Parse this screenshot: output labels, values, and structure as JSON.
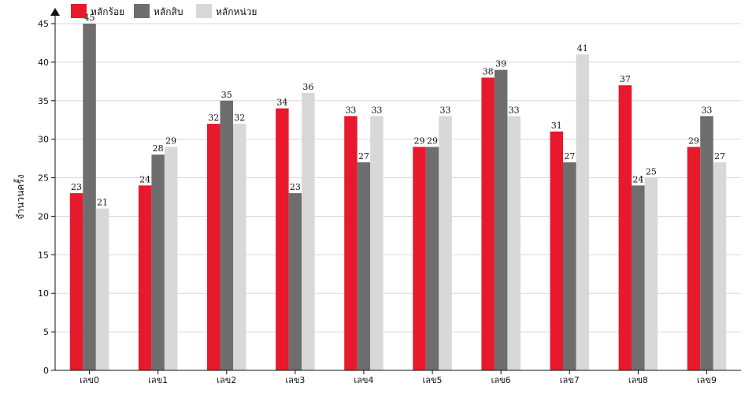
{
  "chart_data": {
    "type": "bar",
    "title": "",
    "xlabel": "",
    "ylabel": "จำนวนครั้ง",
    "ylim": [
      0,
      45
    ],
    "yticks": [
      0,
      5,
      10,
      15,
      20,
      25,
      30,
      35,
      40,
      45
    ],
    "grid": true,
    "legend_position": "top-left",
    "categories": [
      "เลข0",
      "เลข1",
      "เลข2",
      "เลข3",
      "เลข4",
      "เลข5",
      "เลข6",
      "เลข7",
      "เลข8",
      "เลข9"
    ],
    "series": [
      {
        "name": "หลักร้อย",
        "color": "#e8192c",
        "values": [
          23,
          24,
          32,
          34,
          33,
          29,
          38,
          31,
          37,
          29
        ]
      },
      {
        "name": "หลักสิบ",
        "color": "#6e6e6e",
        "values": [
          45,
          28,
          35,
          23,
          27,
          29,
          39,
          27,
          24,
          33
        ]
      },
      {
        "name": "หลักหน่วย",
        "color": "#d8d8d8",
        "values": [
          21,
          29,
          32,
          36,
          33,
          33,
          33,
          41,
          25,
          27
        ]
      }
    ]
  }
}
